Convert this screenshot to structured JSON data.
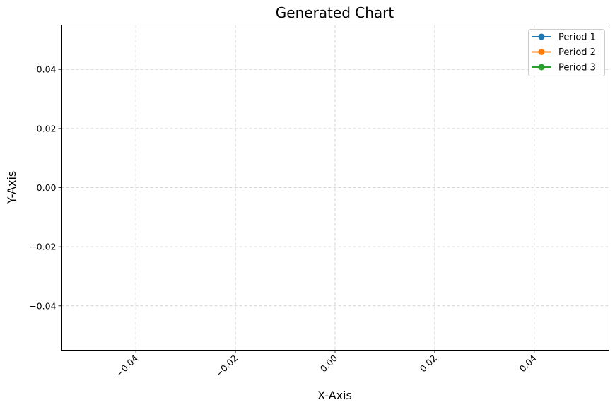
{
  "chart_data": {
    "type": "line",
    "title": "Generated Chart",
    "xlabel": "X-Axis",
    "ylabel": "Y-Axis",
    "xlim": [
      -0.055,
      0.055
    ],
    "ylim": [
      -0.055,
      0.055
    ],
    "x_ticks": [
      -0.04,
      -0.02,
      0.0,
      0.02,
      0.04
    ],
    "x_tick_labels": [
      "−0.04",
      "−0.02",
      "0.00",
      "0.02",
      "0.04"
    ],
    "y_ticks": [
      0.04,
      0.02,
      0.0,
      -0.02,
      -0.04
    ],
    "y_tick_labels": [
      "0.04",
      "0.02",
      "0.00",
      "−0.02",
      "−0.04"
    ],
    "x_tick_rotation_deg": 45,
    "grid": true,
    "legend_position": "top-right",
    "series": [
      {
        "name": "Period 1",
        "color": "#1f77b4",
        "marker": "circle",
        "x": [],
        "y": []
      },
      {
        "name": "Period 2",
        "color": "#ff7f0e",
        "marker": "circle",
        "x": [],
        "y": []
      },
      {
        "name": "Period 3",
        "color": "#2ca02c",
        "marker": "circle",
        "x": [],
        "y": []
      }
    ]
  }
}
